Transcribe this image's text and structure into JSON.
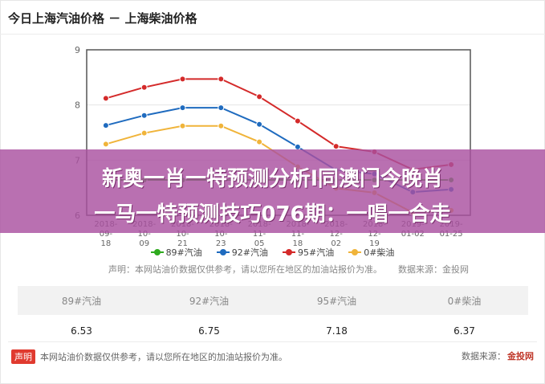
{
  "title": "今日上海汽油价格 － 上海柴油价格",
  "chart_data": {
    "type": "line",
    "categories": [
      "2018-09-18",
      "2018-10-09",
      "2018-10-21",
      "2018-10-23",
      "2018-11-05",
      "2018-11-18",
      "2018-12-02",
      "2018-12-19",
      "2019-01-02",
      "2019-01-25"
    ],
    "category_labels": [
      [
        "2018-",
        "09-",
        "18"
      ],
      [
        "2018-",
        "10-",
        "09"
      ],
      [
        "2018-",
        "10-",
        "21"
      ],
      [
        "2018-",
        "10-",
        "23"
      ],
      [
        "2018-",
        "11-",
        "05"
      ],
      [
        "2018-",
        "11-",
        "18"
      ],
      [
        "2018-",
        "12-",
        "02"
      ],
      [
        "2018-",
        "12-",
        "19"
      ],
      [
        "2019-",
        "01-02"
      ],
      [
        "2019-",
        "01-25"
      ]
    ],
    "series": [
      {
        "name": "89#汽油",
        "color": "#2eaa1e",
        "values": [
          6.64,
          6.64,
          6.64,
          6.64,
          6.64,
          6.64,
          6.64,
          6.64,
          6.64,
          6.64
        ]
      },
      {
        "name": "92#汽油",
        "color": "#1f6bbf",
        "values": [
          7.63,
          7.81,
          7.95,
          7.95,
          7.65,
          7.24,
          6.82,
          6.75,
          6.42,
          6.47
        ]
      },
      {
        "name": "95#汽油",
        "color": "#d42a2a",
        "values": [
          8.12,
          8.32,
          8.47,
          8.47,
          8.15,
          7.71,
          7.25,
          7.15,
          6.83,
          6.92
        ]
      },
      {
        "name": "0#柴油",
        "color": "#f0b43a",
        "values": [
          7.29,
          7.49,
          7.62,
          7.62,
          7.33,
          6.88,
          6.49,
          6.41,
          6.05,
          6.09
        ]
      }
    ],
    "ylim": [
      6,
      9
    ],
    "yticks": [
      6,
      7,
      8,
      9
    ],
    "grid": true,
    "legend": "bottom"
  },
  "note": {
    "label": "声明：",
    "text": "本网站油价数据仅供参考，请以您所在地区的加油站报价为准。",
    "source": "数据来源：金投网"
  },
  "table": {
    "headers": [
      "89#汽油",
      "92#汽油",
      "95#汽油",
      "0#柴油"
    ],
    "values": [
      "6.53",
      "6.75",
      "7.18",
      "6.37"
    ]
  },
  "footer": {
    "tag": "声明",
    "text": "本网站油价数据仅供参考，请以您所在地区的加油站报价为准。",
    "source_label": "数据来源：",
    "source_brand": "金投网"
  },
  "banner": {
    "line1": "新奥一肖一特预测分析l同澳门今晚肖",
    "line2": "一马一特预测技巧076期：一唱一合走"
  }
}
